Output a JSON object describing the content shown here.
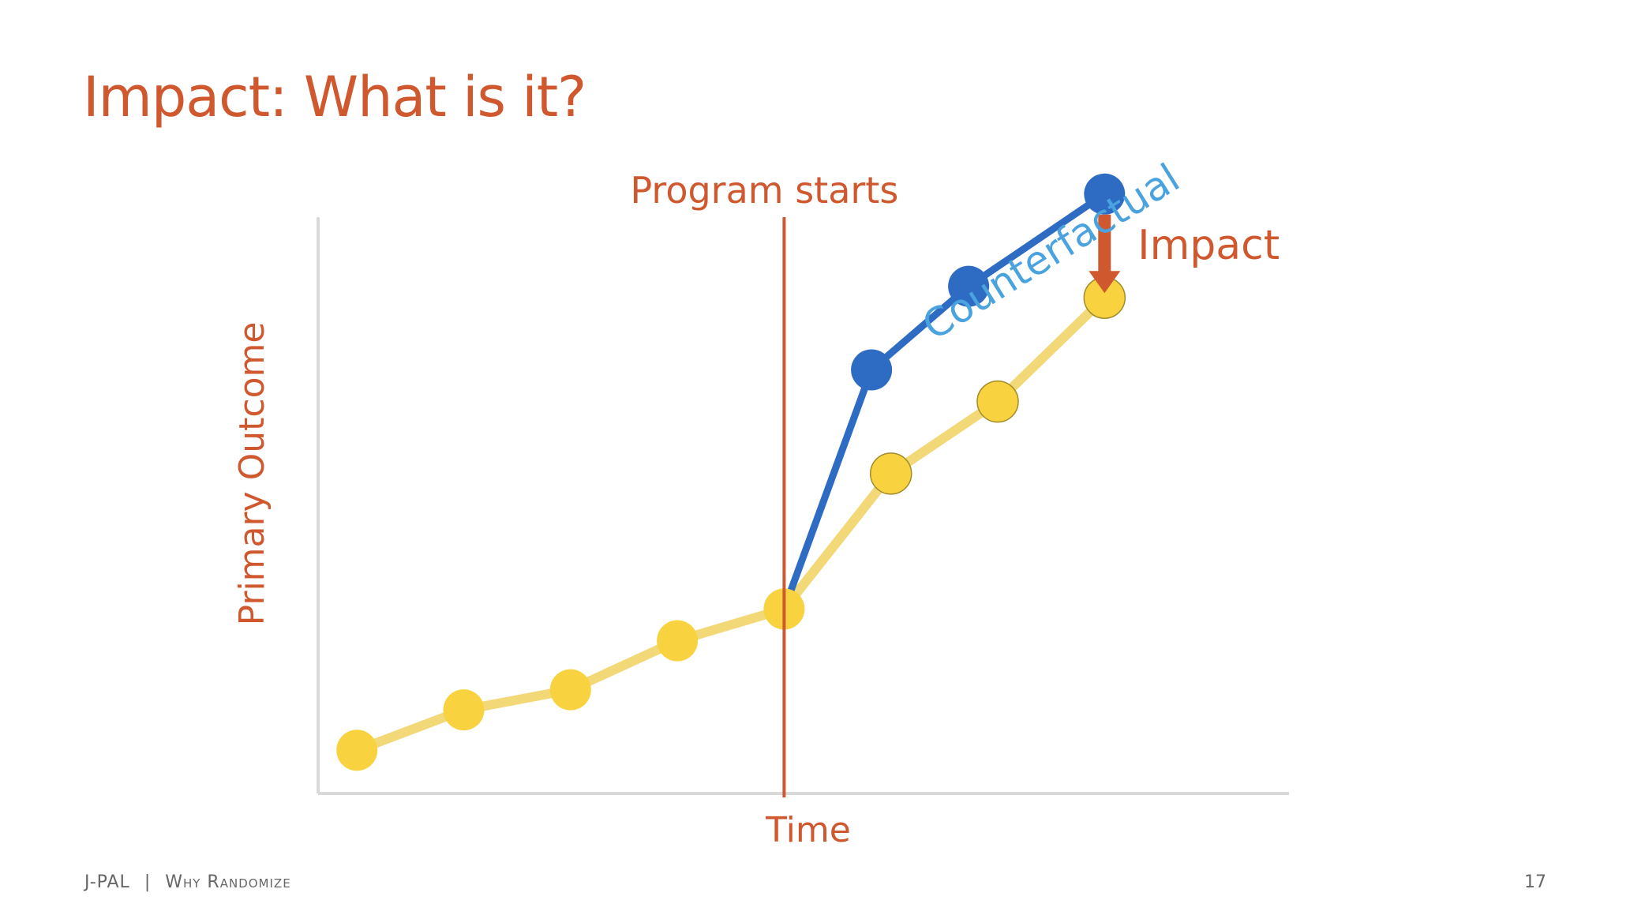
{
  "slide": {
    "title": "Impact: What is it?",
    "footer_org": "J-PAL",
    "footer_separator": "|",
    "footer_section": "Why Randomize",
    "page_number": "17"
  },
  "colors": {
    "accent": "#D0582E",
    "counterfactual": "#2E6CC4",
    "counterfactual_label": "#4AA3DF",
    "outcome_line": "#F2D877",
    "outcome_point": "#F8D33F",
    "axis": "#D9D9D9"
  },
  "chart_data": {
    "type": "line",
    "xlabel": "Time",
    "ylabel": "Primary Outcome",
    "xlim": [
      0,
      10
    ],
    "ylim": [
      0,
      10
    ],
    "grid": false,
    "series": [
      {
        "name": "",
        "x": [
          0.4,
          1.5,
          2.6,
          3.7,
          4.8,
          5.9,
          7.0,
          8.1
        ],
        "y": [
          0.75,
          1.45,
          1.8,
          2.65,
          3.2,
          5.55,
          6.8,
          8.6
        ]
      },
      {
        "name": "Counterfactual",
        "x": [
          4.8,
          5.7,
          6.7,
          8.1
        ],
        "y": [
          3.2,
          7.35,
          8.8,
          10.4
        ]
      }
    ],
    "annotations": {
      "program_start_label": "Program starts",
      "program_start_x": 4.8,
      "counterfactual_label": "Counterfactual",
      "impact_label": "Impact",
      "impact_x": 8.1,
      "impact_from_y": 10.4,
      "impact_to_y": 8.6
    }
  }
}
